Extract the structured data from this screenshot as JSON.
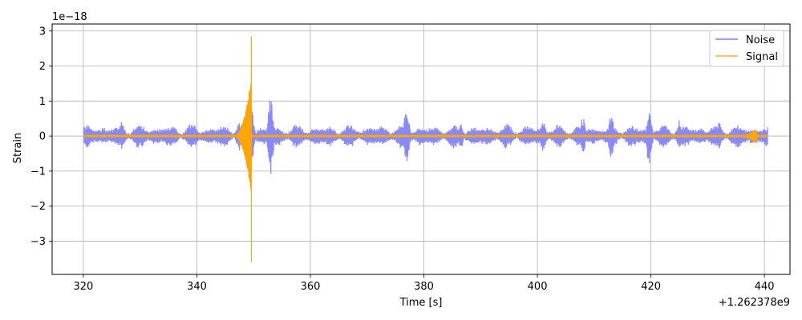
{
  "chart_data": {
    "type": "line",
    "title": "",
    "xlabel": "Time [s]",
    "ylabel": "Strain",
    "x_offset_label": "+1.262378e9",
    "y_scale_label": "1e−18",
    "xlim": [
      314.5,
      444.5
    ],
    "ylim": [
      -3.95,
      3.2
    ],
    "x_ticks": [
      320,
      340,
      360,
      380,
      400,
      420,
      440
    ],
    "x_tick_labels": [
      "320",
      "340",
      "360",
      "380",
      "400",
      "420",
      "440"
    ],
    "y_ticks": [
      3,
      2,
      1,
      0,
      -1,
      -2,
      -3
    ],
    "y_tick_labels": [
      "3",
      "2",
      "1",
      "0",
      "−1",
      "−2",
      "−3"
    ],
    "grid": true,
    "legend_position": "top-right",
    "series": [
      {
        "name": "Noise",
        "color": "#7b7bff",
        "x_range": [
          320.1,
          440.6
        ],
        "typical_amplitude": 0.3,
        "bursts": [
          {
            "x": 326.8,
            "amplitude": 0.45
          },
          {
            "x": 347.4,
            "amplitude": 0.45
          },
          {
            "x": 349.5,
            "amplitude": 1.2
          },
          {
            "x": 353.0,
            "amplitude": 1.25
          },
          {
            "x": 376.9,
            "amplitude": 0.85
          },
          {
            "x": 377.0,
            "amplitude": 0.8
          },
          {
            "x": 386.5,
            "amplitude": 0.4
          },
          {
            "x": 401.0,
            "amplitude": 0.5
          },
          {
            "x": 408.0,
            "amplitude": 0.6
          },
          {
            "x": 413.0,
            "amplitude": 0.7
          },
          {
            "x": 419.7,
            "amplitude": 0.9
          },
          {
            "x": 425.0,
            "amplitude": 0.45
          },
          {
            "x": 432.0,
            "amplitude": 0.45
          }
        ]
      },
      {
        "name": "Signal",
        "color": "#ffa500",
        "x_range": [
          320.1,
          440.6
        ],
        "baseline_amplitude": 0.04,
        "chirp_peak_x": 349.6,
        "chirp_peak_max": 2.85,
        "chirp_peak_min": -3.6,
        "chirp_envelope_max": 1.7,
        "ringdown_x": 438.3,
        "ringdown_amplitude": 0.2
      }
    ]
  }
}
